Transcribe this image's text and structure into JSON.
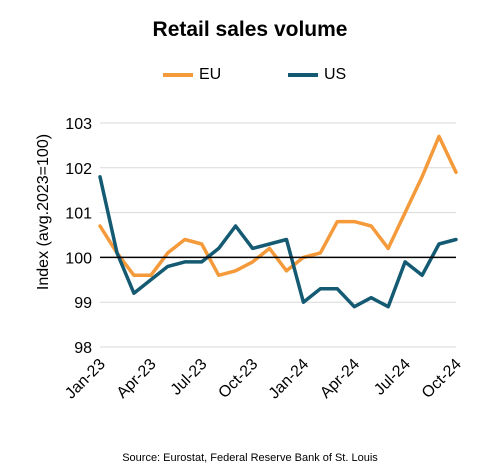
{
  "chart_data": {
    "type": "line",
    "title": "Retail sales volume",
    "ylabel": "Index (avg.2023=100)",
    "xlabel": "",
    "ylim": [
      98,
      103
    ],
    "yticks": [
      98,
      99,
      100,
      101,
      102,
      103
    ],
    "baseline": 100,
    "grid": true,
    "legend": "top",
    "x_tick_labels": [
      "Jan-23",
      "Apr-23",
      "Jul-23",
      "Oct-23",
      "Jan-24",
      "Apr-24",
      "Jul-24",
      "Oct-24"
    ],
    "x": [
      "Jan-23",
      "Feb-23",
      "Mar-23",
      "Apr-23",
      "May-23",
      "Jun-23",
      "Jul-23",
      "Aug-23",
      "Sep-23",
      "Oct-23",
      "Nov-23",
      "Dec-23",
      "Jan-24",
      "Feb-24",
      "Mar-24",
      "Apr-24",
      "May-24",
      "Jun-24",
      "Jul-24",
      "Aug-24",
      "Sep-24",
      "Oct-24"
    ],
    "series": [
      {
        "name": "EU",
        "color": "#f59a3b",
        "values": [
          100.7,
          100.1,
          99.6,
          99.6,
          100.1,
          100.4,
          100.3,
          99.6,
          99.7,
          99.9,
          100.2,
          99.7,
          100.0,
          100.1,
          100.8,
          100.8,
          100.7,
          100.2,
          101.0,
          101.8,
          102.7,
          101.9
        ]
      },
      {
        "name": "US",
        "color": "#145a72",
        "values": [
          101.8,
          100.1,
          99.2,
          99.5,
          99.8,
          99.9,
          99.9,
          100.2,
          100.7,
          100.2,
          100.3,
          100.4,
          99.0,
          99.3,
          99.3,
          98.9,
          99.1,
          98.9,
          99.9,
          99.6,
          100.3,
          100.4
        ]
      }
    ]
  },
  "source": "Source: Eurostat, Federal Reserve Bank of St. Louis"
}
